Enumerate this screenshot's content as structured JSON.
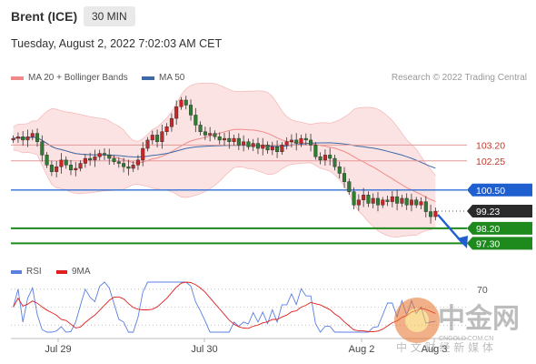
{
  "header": {
    "instrument": "Brent (ICE)",
    "timeframe": "30 MIN"
  },
  "timestamp": "Tuesday, August 2, 2022 7:02:03 AM CET",
  "legend": {
    "item1": "MA 20 + Bollinger Bands",
    "item1_color": "#f08a8a",
    "item2": "MA 50",
    "item2_color": "#3d6aa6"
  },
  "credit": "Research © 2022 Trading Central",
  "rsi_legend": {
    "rsi": "RSI",
    "rsi_color": "#5b7fe0",
    "ma": "9MA",
    "ma_color": "#e02020"
  },
  "watermark": {
    "brand": "中金网",
    "domain": "CNGOLD.COM.CN",
    "tagline": "中 文 财 经 新 媒 体"
  },
  "chart_data": {
    "type": "candlestick",
    "x_ticks": [
      "Jul 29",
      "Jul 30",
      "Aug 2",
      "Aug 3"
    ],
    "y_range": [
      96.5,
      106.5
    ],
    "levels": [
      {
        "value": 103.2,
        "label": "103.20",
        "style": "thin-red"
      },
      {
        "value": 102.25,
        "label": "102.25",
        "style": "thin-red"
      },
      {
        "value": 100.5,
        "label": "100.50",
        "style": "blue-box"
      },
      {
        "value": 99.23,
        "label": "99.23",
        "style": "dark-box"
      },
      {
        "value": 98.2,
        "label": "98.20",
        "style": "green-box"
      },
      {
        "value": 97.3,
        "label": "97.30",
        "style": "green-box"
      }
    ],
    "close": [
      103.6,
      103.7,
      103.5,
      103.7,
      103.9,
      103.4,
      102.6,
      102.0,
      101.6,
      101.9,
      102.3,
      102.0,
      101.7,
      101.8,
      102.1,
      102.4,
      102.3,
      102.5,
      102.7,
      102.6,
      102.4,
      102.2,
      102.1,
      101.9,
      101.8,
      102.0,
      102.3,
      103.0,
      103.5,
      103.8,
      103.4,
      104.0,
      104.3,
      104.8,
      105.5,
      105.9,
      105.6,
      105.0,
      104.4,
      104.0,
      103.8,
      103.9,
      103.7,
      103.5,
      103.6,
      103.4,
      103.6,
      103.2,
      103.4,
      103.1,
      103.3,
      103.0,
      103.2,
      102.9,
      103.1,
      102.8,
      103.2,
      103.4,
      103.5,
      103.3,
      103.6,
      103.5,
      103.2,
      102.5,
      102.3,
      102.6,
      102.4,
      101.9,
      101.5,
      101.0,
      100.4,
      99.6,
      99.9,
      100.2,
      99.7,
      100.0,
      99.6,
      99.9,
      99.8,
      100.1,
      99.7,
      100.0,
      99.6,
      99.9,
      99.6,
      99.8,
      99.2,
      98.9,
      99.23
    ],
    "rsi_levels": {
      "upper": 70,
      "upper_label": "70"
    }
  }
}
